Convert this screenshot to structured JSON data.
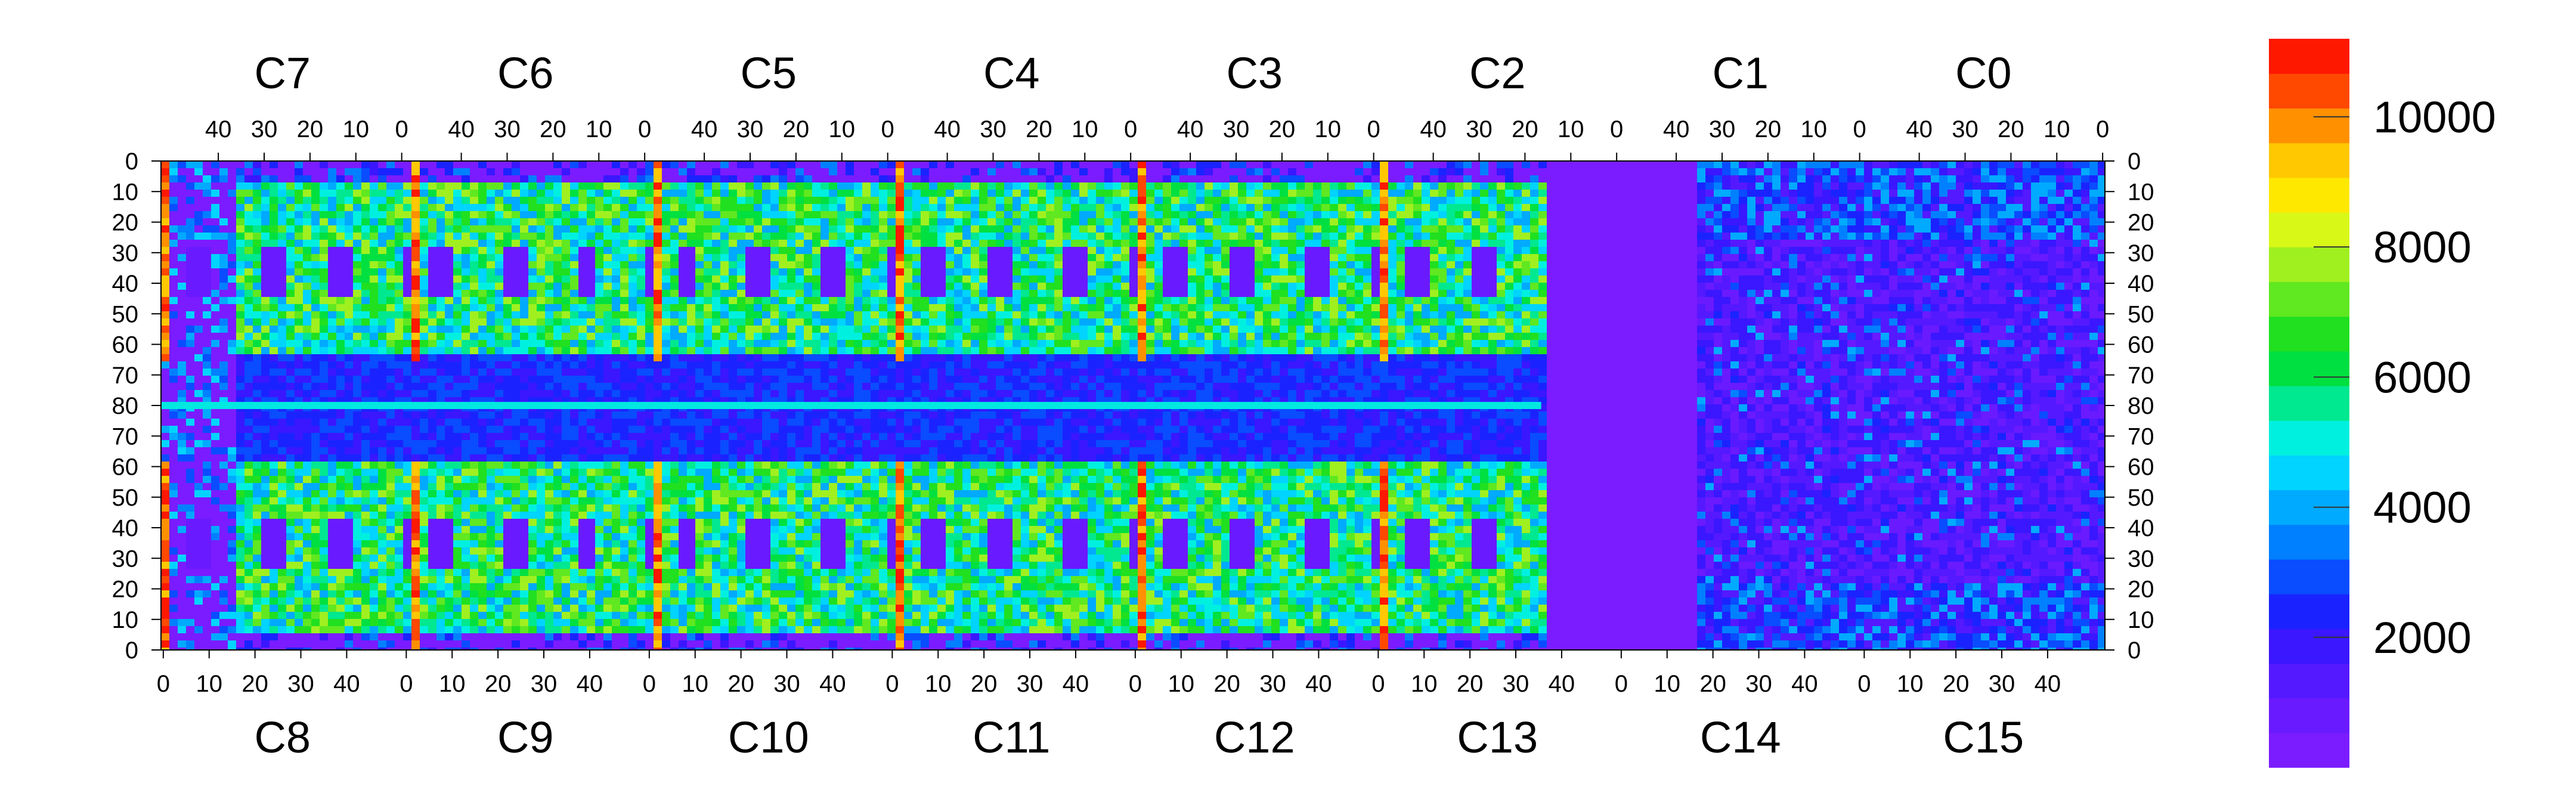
{
  "chart_data": {
    "type": "heatmap",
    "title": "",
    "xlabel": "",
    "ylabel": "",
    "grid": false,
    "legend": "colorbar-right",
    "top_chips": [
      "C7",
      "C6",
      "C5",
      "C4",
      "C3",
      "C2",
      "C1",
      "C0"
    ],
    "bottom_chips": [
      "C8",
      "C9",
      "C10",
      "C11",
      "C12",
      "C13",
      "C14",
      "C15"
    ],
    "top_x_ticks": [
      "40",
      "30",
      "20",
      "10",
      "0"
    ],
    "bottom_x_ticks": [
      "0",
      "10",
      "20",
      "30",
      "40"
    ],
    "y_ticks": [
      "0",
      "10",
      "20",
      "30",
      "40",
      "50",
      "60",
      "70",
      "80",
      "70",
      "60",
      "50",
      "40",
      "30",
      "20",
      "10",
      "0"
    ],
    "colorbar": {
      "range": [
        0,
        11200
      ],
      "ticks": [
        2000,
        4000,
        6000,
        8000,
        10000
      ],
      "tick_labels": [
        "2000",
        "4000",
        "6000",
        "8000",
        "10000"
      ],
      "colors": [
        "#7a1cff",
        "#6a1aff",
        "#5519ff",
        "#3a17ff",
        "#1a23ff",
        "#0a4cff",
        "#0080ff",
        "#00aaff",
        "#00d4ff",
        "#00f0e0",
        "#00e890",
        "#00e040",
        "#20e020",
        "#60e820",
        "#a0f020",
        "#d8f818",
        "#ffe800",
        "#ffc800",
        "#ff9000",
        "#ff4800",
        "#ff1800"
      ]
    }
  }
}
